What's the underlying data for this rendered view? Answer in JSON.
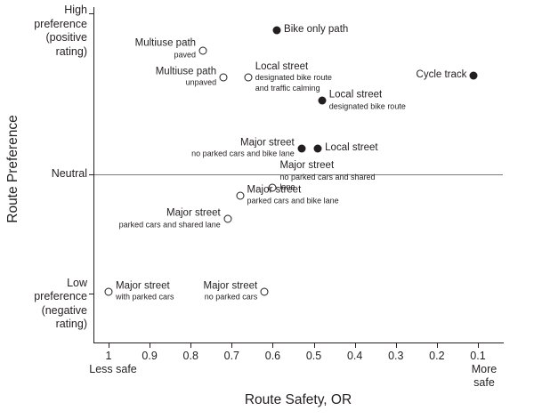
{
  "chart_data": {
    "type": "scatter",
    "title": "",
    "xlabel": "Route Safety, OR",
    "ylabel": "Route Preference",
    "xlim": [
      1,
      0.1
    ],
    "x_axis_reversed": true,
    "x_ticks": [
      1,
      0.9,
      0.8,
      0.7,
      0.6,
      0.5,
      0.4,
      0.3,
      0.2,
      0.1
    ],
    "x_tick_labels": [
      "1",
      "0.9",
      "0.8",
      "0.7",
      "0.6",
      "0.5",
      "0.4",
      "0.3",
      "0.2",
      "0.1"
    ],
    "x_end_labels": {
      "left": "Less safe",
      "right": "More\nsafe"
    },
    "y_axis_labels": [
      {
        "label": "High\npreference\n(positive\nrating)",
        "pref": 1.15
      },
      {
        "label": "Neutral",
        "pref": 0
      },
      {
        "label": "Low\npreference\n(negative\nrating)",
        "pref": -1.04
      }
    ],
    "y_tick_prefs": [
      1.29,
      0,
      -0.96
    ],
    "neutral_line_pref": 0,
    "colors": {
      "marker_filled": "#231f20",
      "marker_open_fill": "#ffffff",
      "text": "#231f20"
    },
    "points": [
      {
        "name": "Bike only path",
        "sub": "",
        "or": 0.59,
        "pref": 1.16,
        "marker": "filled",
        "side": "right",
        "dy": 0
      },
      {
        "name": "Multiuse path",
        "sub": "paved",
        "or": 0.77,
        "pref": 0.99,
        "marker": "open",
        "side": "left",
        "dy": -2
      },
      {
        "name": "Multiuse path",
        "sub": "unpaved",
        "or": 0.72,
        "pref": 0.78,
        "marker": "open",
        "side": "left",
        "dy": 0
      },
      {
        "name": "Local street",
        "sub": "designated bike route\nand traffic calming",
        "or": 0.66,
        "pref": 0.78,
        "marker": "open",
        "side": "right",
        "dy": 0
      },
      {
        "name": "Cycle track",
        "sub": "",
        "or": 0.11,
        "pref": 0.79,
        "marker": "filled",
        "side": "left",
        "dy": 0
      },
      {
        "name": "Local street",
        "sub": "designated bike route",
        "or": 0.48,
        "pref": 0.59,
        "marker": "filled",
        "side": "right",
        "dy": 0
      },
      {
        "name": "Major street",
        "sub": "no parked cars and bike lane",
        "or": 0.53,
        "pref": 0.21,
        "marker": "filled",
        "side": "left",
        "dy": 0
      },
      {
        "name": "Local street",
        "sub": "",
        "or": 0.49,
        "pref": 0.21,
        "marker": "filled",
        "side": "right",
        "dy": 0
      },
      {
        "name": "Major street",
        "sub": "no parked cars and shared\nlane",
        "or": 0.6,
        "pref": -0.11,
        "marker": "open",
        "side": "right",
        "dy": -13
      },
      {
        "name": "Major street",
        "sub": "parked cars and bike lane",
        "or": 0.68,
        "pref": -0.17,
        "marker": "open",
        "side": "right",
        "dy": 0
      },
      {
        "name": "Major street",
        "sub": "parked cars and shared lane",
        "or": 0.71,
        "pref": -0.36,
        "marker": "open",
        "side": "left",
        "dy": 0
      },
      {
        "name": "Major street",
        "sub": "with parked cars",
        "or": 1.0,
        "pref": -0.94,
        "marker": "open",
        "side": "right",
        "dy": 0
      },
      {
        "name": "Major street",
        "sub": "no parked cars",
        "or": 0.62,
        "pref": -0.94,
        "marker": "open",
        "side": "left",
        "dy": 0
      }
    ]
  }
}
